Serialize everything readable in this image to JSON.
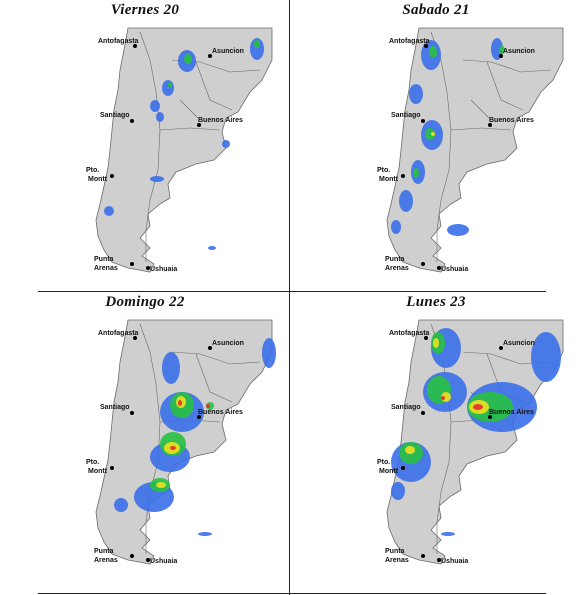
{
  "panels": [
    {
      "title": "Viernes 20"
    },
    {
      "title": "Sabado 21"
    },
    {
      "title": "Domingo 22"
    },
    {
      "title": "Lunes 23"
    }
  ],
  "cities": {
    "antofagasta": "Antofagasta",
    "asuncion": "Asuncion",
    "santiago": "Santiago",
    "buenos_aires": "Buenos Aires",
    "pto": "Pto.",
    "montt": "Montt",
    "punta": "Punta",
    "arenas": "Arenas",
    "ushuaia": "Ushuaia"
  },
  "colors": {
    "land": "#cfcfcf",
    "border": "#6a6a6a",
    "rain_light": "#3a6fe8",
    "rain_mod": "#28c040",
    "rain_heavy": "#f0e020",
    "rain_extreme": "#e03030"
  }
}
